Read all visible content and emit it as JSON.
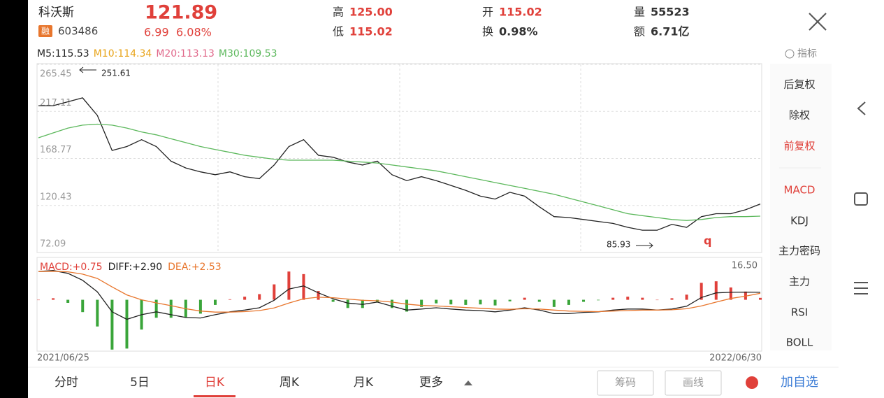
{
  "header": {
    "name": "科沃斯",
    "badge": "融",
    "code": "603486",
    "price": "121.89",
    "change": "6.99",
    "change_pct": "6.08%",
    "stats": [
      {
        "label": "高",
        "value": "125.00"
      },
      {
        "label": "低",
        "value": "115.02"
      },
      {
        "label": "开",
        "value": "115.02"
      },
      {
        "label": "换",
        "value": "0.98%"
      },
      {
        "label": "量",
        "value": "55523"
      },
      {
        "label": "额",
        "value": "6.71亿"
      }
    ]
  },
  "indicators": {
    "ma": [
      {
        "text": "M5:115.53",
        "color": "#222222"
      },
      {
        "text": "M10:114.34",
        "color": "#e8a317"
      },
      {
        "text": "M20:113.13",
        "color": "#e0688a"
      },
      {
        "text": "M30:109.53",
        "color": "#5cb85c"
      }
    ],
    "button": "指标"
  },
  "chart_data": [
    {
      "type": "line",
      "ylim": [
        72.09,
        265.45
      ],
      "yticks": [
        265.45,
        217.11,
        168.77,
        120.43,
        72.09
      ],
      "date_range": [
        "2021/06/25",
        "2022/06/30"
      ],
      "annotations": [
        {
          "text": "251.61"
        },
        {
          "text": "85.93"
        }
      ],
      "series": [
        {
          "color": "#222222",
          "values": [
            223,
            223,
            227,
            231,
            213,
            177,
            181,
            188,
            181,
            166,
            159,
            155,
            152,
            155,
            150,
            148,
            162,
            181,
            188,
            172,
            170,
            165,
            162,
            166,
            152,
            146,
            150,
            146,
            141,
            136,
            130,
            127,
            134,
            130,
            119,
            109,
            108,
            106,
            104,
            102,
            98,
            95,
            95,
            101,
            98,
            109,
            112,
            112,
            116,
            122
          ]
        },
        {
          "color": "#5cb85c",
          "values": [
            190,
            195,
            200,
            203,
            204,
            203,
            200,
            196,
            193,
            189,
            185,
            181,
            178,
            175,
            172,
            170,
            168,
            167,
            167,
            167,
            167,
            166,
            165,
            164,
            162,
            160,
            158,
            156,
            153,
            150,
            147,
            144,
            141,
            138,
            135,
            132,
            128,
            124,
            120,
            116,
            112,
            110,
            108,
            106,
            105,
            106,
            108,
            109,
            109,
            109.5
          ]
        }
      ]
    },
    {
      "type": "macd",
      "legend": [
        {
          "text": "MACD:+0.75",
          "color": "#e0403a"
        },
        {
          "text": "DIFF:+2.90",
          "color": "#222222"
        },
        {
          "text": "DEA:+2.53",
          "color": "#e8762d"
        }
      ],
      "ylim": [
        -20,
        16.5
      ],
      "yticks": [
        {
          "value": 16.5,
          "label": "16.50"
        }
      ],
      "histogram": [
        0,
        0.6,
        -1.2,
        -4.8,
        -10.4,
        -19.4,
        -19,
        -11.6,
        -7,
        -7,
        -6.8,
        -5.4,
        -2,
        0.2,
        1.2,
        2.2,
        6,
        11,
        10,
        3.4,
        -0.8,
        -3.2,
        -3.2,
        -1,
        -3.2,
        -4.6,
        -2.8,
        -1.4,
        -1.8,
        -2,
        -1.8,
        -2.2,
        -0.6,
        0.8,
        -0.8,
        -2.8,
        -2,
        -0.8,
        -0.2,
        0.8,
        1.2,
        0.8,
        0,
        0.6,
        2,
        6.6,
        7.2,
        4.8,
        3.2,
        0.75
      ],
      "series": [
        {
          "color": "#222222",
          "values": [
            11,
            11.4,
            10.3,
            7.6,
            3.1,
            -4.7,
            -7.6,
            -5.8,
            -4.7,
            -5.8,
            -6.9,
            -7.1,
            -5.8,
            -4.7,
            -4,
            -3.1,
            -0.2,
            4.2,
            5.4,
            2.7,
            0.4,
            -1.3,
            -1.8,
            -0.9,
            -2.5,
            -4,
            -3.6,
            -3.1,
            -3.6,
            -4,
            -4.2,
            -4.7,
            -4,
            -3.1,
            -4,
            -5.4,
            -5.4,
            -4.9,
            -4.7,
            -4,
            -3.6,
            -3.6,
            -4,
            -3.6,
            -2.5,
            0.9,
            2.7,
            2.9,
            3,
            2.9
          ]
        },
        {
          "color": "#e8762d",
          "values": [
            11,
            11.1,
            10.9,
            10,
            8.3,
            5,
            1.9,
            0,
            -1.2,
            -2.3,
            -3.5,
            -4.4,
            -4.8,
            -4.8,
            -4.6,
            -4.2,
            -3.2,
            -1.3,
            0.4,
            1,
            0.8,
            0.3,
            -0.2,
            -0.4,
            -0.9,
            -1.7,
            -2.2,
            -2.4,
            -2.7,
            -3,
            -3.3,
            -3.6,
            -3.7,
            -3.5,
            -3.6,
            -4,
            -4.4,
            -4.5,
            -4.6,
            -4.4,
            -4.2,
            -4,
            -4,
            -3.9,
            -3.5,
            -2.4,
            -0.9,
            0.5,
            1.4,
            2.53
          ]
        }
      ]
    }
  ],
  "side_menu": [
    {
      "text": "后复权",
      "active": false
    },
    {
      "text": "除权",
      "active": false
    },
    {
      "text": "前复权",
      "active": true
    },
    {
      "text": "MACD",
      "active": true
    },
    {
      "text": "KDJ",
      "active": false
    },
    {
      "text": "主力密码",
      "active": false
    },
    {
      "text": "主力",
      "active": false
    },
    {
      "text": "RSI",
      "active": false
    },
    {
      "text": "BOLL",
      "active": false
    }
  ],
  "tabs": [
    {
      "text": "分时",
      "active": false
    },
    {
      "text": "5日",
      "active": false
    },
    {
      "text": "日K",
      "active": true
    },
    {
      "text": "周K",
      "active": false
    },
    {
      "text": "月K",
      "active": false
    },
    {
      "text": "更多",
      "active": false
    }
  ],
  "buttons": [
    "筹码",
    "画线"
  ],
  "add_watch": "加自选"
}
